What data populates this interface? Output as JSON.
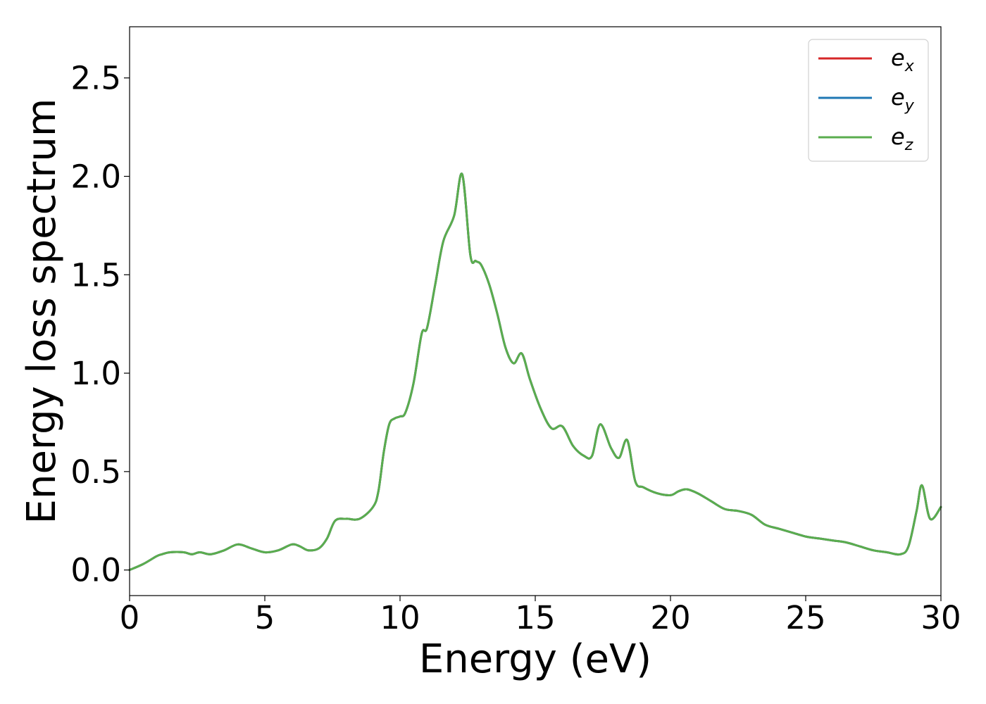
{
  "chart_data": {
    "type": "line",
    "xlabel": "Energy (eV)",
    "ylabel": "Energy loss spectrum",
    "xlim": [
      0,
      30
    ],
    "ylim": [
      -0.13,
      2.76
    ],
    "xticks": [
      0,
      5,
      10,
      15,
      20,
      25,
      30
    ],
    "xtick_labels": [
      "0",
      "5",
      "10",
      "15",
      "20",
      "25",
      "30"
    ],
    "yticks": [
      0.0,
      0.5,
      1.0,
      1.5,
      2.0,
      2.5
    ],
    "ytick_labels": [
      "0.0",
      "0.5",
      "1.0",
      "1.5",
      "2.0",
      "2.5"
    ],
    "grid": false,
    "legend_position": "top-right",
    "x": [
      0,
      0.5,
      1,
      1.2,
      1.5,
      2,
      2.3,
      2.6,
      3,
      3.5,
      4,
      4.5,
      5,
      5.5,
      6,
      6.3,
      6.6,
      7,
      7.3,
      7.6,
      8,
      8.5,
      9,
      9.2,
      9.4,
      9.6,
      9.8,
      10,
      10.2,
      10.5,
      10.8,
      11,
      11.3,
      11.6,
      12,
      12.3,
      12.6,
      12.8,
      13,
      13.3,
      13.6,
      13.9,
      14.2,
      14.5,
      14.8,
      15.2,
      15.6,
      16,
      16.4,
      16.8,
      17.1,
      17.4,
      17.8,
      18.1,
      18.4,
      18.7,
      19,
      19.5,
      20,
      20.3,
      20.6,
      21,
      21.5,
      22,
      22.5,
      23,
      23.5,
      24,
      24.5,
      25,
      25.5,
      26,
      26.5,
      27,
      27.5,
      28,
      28.5,
      28.8,
      29.1,
      29.3,
      29.6,
      30
    ],
    "series": [
      {
        "name": "e_x",
        "color": "#d62728",
        "values": [
          0,
          0.03,
          0.07,
          0.08,
          0.09,
          0.09,
          0.08,
          0.09,
          0.08,
          0.1,
          0.13,
          0.11,
          0.09,
          0.1,
          0.13,
          0.12,
          0.1,
          0.11,
          0.16,
          0.25,
          0.26,
          0.26,
          0.32,
          0.4,
          0.6,
          0.74,
          0.77,
          0.78,
          0.8,
          0.95,
          1.2,
          1.23,
          1.45,
          1.67,
          1.8,
          2.01,
          1.6,
          1.57,
          1.55,
          1.45,
          1.3,
          1.13,
          1.05,
          1.1,
          0.97,
          0.82,
          0.72,
          0.73,
          0.63,
          0.58,
          0.58,
          0.74,
          0.62,
          0.57,
          0.66,
          0.45,
          0.42,
          0.39,
          0.38,
          0.4,
          0.41,
          0.39,
          0.35,
          0.31,
          0.3,
          0.28,
          0.23,
          0.21,
          0.19,
          0.17,
          0.16,
          0.15,
          0.14,
          0.12,
          0.1,
          0.09,
          0.08,
          0.12,
          0.3,
          0.43,
          0.26,
          0.32
        ]
      },
      {
        "name": "e_y",
        "color": "#1f77b4",
        "values": [
          0,
          0.03,
          0.07,
          0.08,
          0.09,
          0.09,
          0.08,
          0.09,
          0.08,
          0.1,
          0.13,
          0.11,
          0.09,
          0.1,
          0.13,
          0.12,
          0.1,
          0.11,
          0.16,
          0.25,
          0.26,
          0.26,
          0.32,
          0.4,
          0.6,
          0.74,
          0.77,
          0.78,
          0.8,
          0.95,
          1.2,
          1.23,
          1.45,
          1.67,
          1.8,
          2.01,
          1.6,
          1.57,
          1.55,
          1.45,
          1.3,
          1.13,
          1.05,
          1.1,
          0.97,
          0.82,
          0.72,
          0.73,
          0.63,
          0.58,
          0.58,
          0.74,
          0.62,
          0.57,
          0.66,
          0.45,
          0.42,
          0.39,
          0.38,
          0.4,
          0.41,
          0.39,
          0.35,
          0.31,
          0.3,
          0.28,
          0.23,
          0.21,
          0.19,
          0.17,
          0.16,
          0.15,
          0.14,
          0.12,
          0.1,
          0.09,
          0.08,
          0.12,
          0.3,
          0.43,
          0.26,
          0.32
        ]
      },
      {
        "name": "e_z",
        "color": "#5aad4e",
        "values": [
          0,
          0.03,
          0.07,
          0.08,
          0.09,
          0.09,
          0.08,
          0.09,
          0.08,
          0.1,
          0.13,
          0.11,
          0.09,
          0.1,
          0.13,
          0.12,
          0.1,
          0.11,
          0.16,
          0.25,
          0.26,
          0.26,
          0.32,
          0.4,
          0.6,
          0.74,
          0.77,
          0.78,
          0.8,
          0.95,
          1.2,
          1.23,
          1.45,
          1.67,
          1.8,
          2.01,
          1.6,
          1.57,
          1.55,
          1.45,
          1.3,
          1.13,
          1.05,
          1.1,
          0.97,
          0.82,
          0.72,
          0.73,
          0.63,
          0.58,
          0.58,
          0.74,
          0.62,
          0.57,
          0.66,
          0.45,
          0.42,
          0.39,
          0.38,
          0.4,
          0.41,
          0.39,
          0.35,
          0.31,
          0.3,
          0.28,
          0.23,
          0.21,
          0.19,
          0.17,
          0.16,
          0.15,
          0.14,
          0.12,
          0.1,
          0.09,
          0.08,
          0.12,
          0.3,
          0.43,
          0.26,
          0.32
        ]
      }
    ],
    "legend": [
      {
        "base": "e",
        "sub": "x",
        "color": "#d62728"
      },
      {
        "base": "e",
        "sub": "y",
        "color": "#1f77b4"
      },
      {
        "base": "e",
        "sub": "z",
        "color": "#5aad4e"
      }
    ]
  }
}
